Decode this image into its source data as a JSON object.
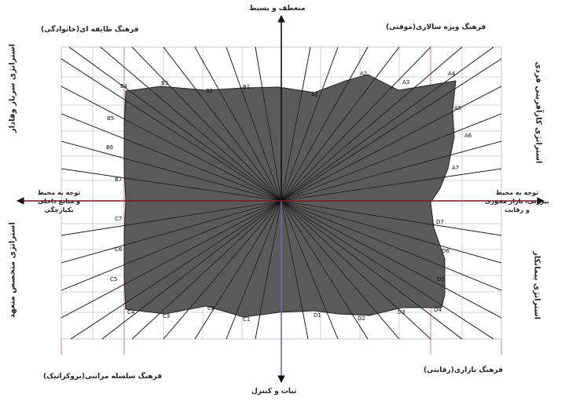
{
  "axes": {
    "top": "منعطف و بسیط",
    "bottom": "ثبات و کنترل",
    "left": [
      "توجه به محیط",
      "و منابع داخلی",
      "یکپارچگی"
    ],
    "right": [
      "توجه به محیط",
      "بیرونی، بازار محوری",
      "و رقابت"
    ]
  },
  "quadrant_labels": {
    "top_left": "فرهنگ طایفه ای(خانوادگی)",
    "top_right": "فرهنگ ویژه سالاری(موقتی)",
    "bottom_left": "فرهنگ سلسله مراتبی(بروکراتیک)",
    "bottom_right": "فرهنگ بازاری(رقابتی)"
  },
  "strategy_labels": {
    "left_top": "استراتژی سرباز وفادار",
    "left_bottom": "استراتژی متخصص متعهد",
    "right_top": "استراتژی کارآفرینی فردی",
    "right_bottom": "استراتژی پیمانکار"
  },
  "points": [
    {
      "id": "A1",
      "label": "A1"
    },
    {
      "id": "A2",
      "label": "A2"
    },
    {
      "id": "A3",
      "label": "A3"
    },
    {
      "id": "A4",
      "label": "A4"
    },
    {
      "id": "A5",
      "label": "A5"
    },
    {
      "id": "A6",
      "label": "A6"
    },
    {
      "id": "A7",
      "label": "A7"
    },
    {
      "id": "B1",
      "label": "B1"
    },
    {
      "id": "B2",
      "label": "B2"
    },
    {
      "id": "B3",
      "label": "B3"
    },
    {
      "id": "B4",
      "label": "B4"
    },
    {
      "id": "B5",
      "label": "B5"
    },
    {
      "id": "B6",
      "label": "B6"
    },
    {
      "id": "B7",
      "label": "B7"
    },
    {
      "id": "C1",
      "label": "C1"
    },
    {
      "id": "C2",
      "label": "C2"
    },
    {
      "id": "C3",
      "label": "C3"
    },
    {
      "id": "C4",
      "label": "C4"
    },
    {
      "id": "C5",
      "label": "C5"
    },
    {
      "id": "C6",
      "label": "C6"
    },
    {
      "id": "C7",
      "label": "C7"
    },
    {
      "id": "D1",
      "label": "D1"
    },
    {
      "id": "D2",
      "label": "D2"
    },
    {
      "id": "D3",
      "label": "D3"
    },
    {
      "id": "D4",
      "label": "D4"
    },
    {
      "id": "D5",
      "label": "D5"
    },
    {
      "id": "D6",
      "label": "D6"
    },
    {
      "id": "D7",
      "label": "D7"
    }
  ],
  "colors": {
    "fill": "#5a5a5a",
    "fill_stroke": "#222222",
    "grid": "#c5c5c5",
    "rule": "#d47a8a",
    "axis_h": "#7a1526",
    "axis_v_bottom": "#6a6aa8"
  }
}
